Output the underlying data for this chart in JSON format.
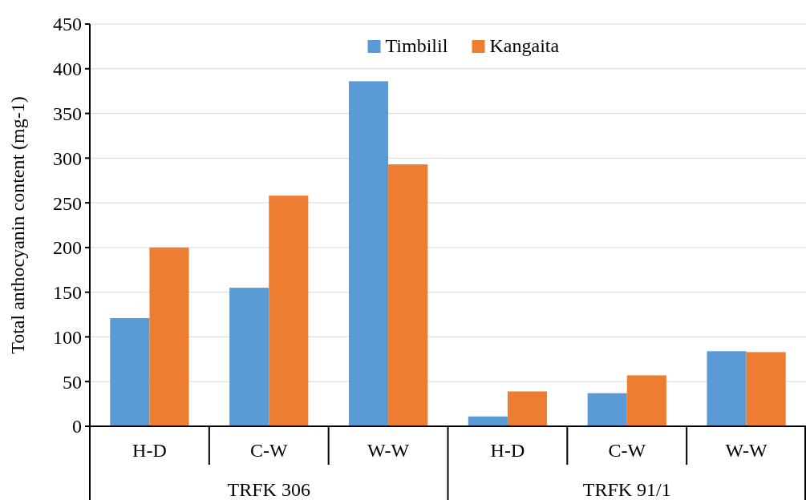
{
  "chart_data": {
    "type": "bar",
    "ylabel": "Total anthocyanin content (mg-1)",
    "categories": [
      "H-D",
      "C-W",
      "W-W",
      "H-D",
      "C-W",
      "W-W"
    ],
    "series": [
      {
        "name": "Timbilil",
        "color": "#5b9bd5",
        "values": [
          121,
          155,
          386,
          11,
          37,
          84
        ]
      },
      {
        "name": "Kangaita",
        "color": "#ed7d31",
        "values": [
          200,
          258,
          293,
          39,
          57,
          83
        ]
      }
    ],
    "ylim": [
      0,
      450
    ],
    "yticks": [
      0,
      50,
      100,
      150,
      200,
      250,
      300,
      350,
      400,
      450
    ],
    "grid": "y",
    "legend": "top",
    "annotations": [
      "TRFK 306",
      "TRFK 91/1"
    ]
  }
}
